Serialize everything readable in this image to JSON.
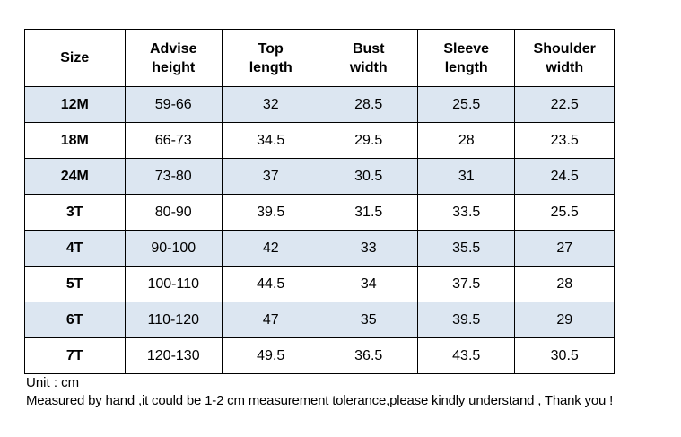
{
  "table": {
    "headers": [
      [
        "Size"
      ],
      [
        "Advise",
        "height"
      ],
      [
        "Top",
        "length"
      ],
      [
        "Bust",
        "width"
      ],
      [
        "Sleeve",
        "length"
      ],
      [
        "Shoulder",
        "width"
      ]
    ],
    "rows": [
      [
        "12M",
        "59-66",
        "32",
        "28.5",
        "25.5",
        "22.5"
      ],
      [
        "18M",
        "66-73",
        "34.5",
        "29.5",
        "28",
        "23.5"
      ],
      [
        "24M",
        "73-80",
        "37",
        "30.5",
        "31",
        "24.5"
      ],
      [
        "3T",
        "80-90",
        "39.5",
        "31.5",
        "33.5",
        "25.5"
      ],
      [
        "4T",
        "90-100",
        "42",
        "33",
        "35.5",
        "27"
      ],
      [
        "5T",
        "100-110",
        "44.5",
        "34",
        "37.5",
        "28"
      ],
      [
        "6T",
        "110-120",
        "47",
        "35",
        "39.5",
        "29"
      ],
      [
        "7T",
        "120-130",
        "49.5",
        "36.5",
        "43.5",
        "30.5"
      ]
    ]
  },
  "notes": {
    "unit": "Unit : cm",
    "measure": "Measured by hand ,it could be 1-2 cm measurement tolerance,please kindly understand , Thank you !"
  },
  "colors": {
    "shaded_row": "#dce6f1",
    "border": "#000000"
  }
}
